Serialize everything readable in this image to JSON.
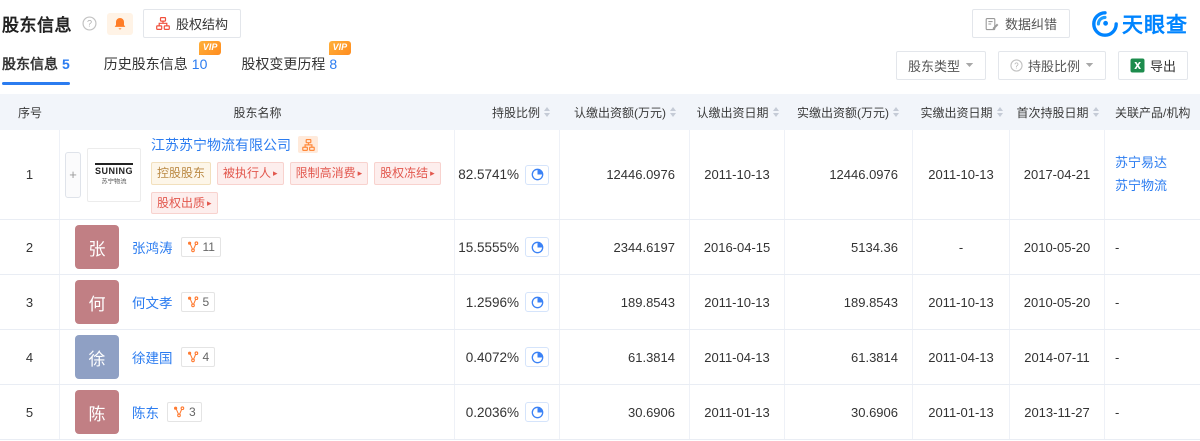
{
  "header": {
    "title": "股东信息",
    "equity_structure": "股权结构",
    "data_correction": "数据纠错",
    "brand": "天眼查"
  },
  "tabs": [
    {
      "label": "股东信息",
      "count": "5",
      "vip": ""
    },
    {
      "label": "历史股东信息",
      "count": "10",
      "vip": "VIP"
    },
    {
      "label": "股权变更历程",
      "count": "8",
      "vip": "VIP"
    }
  ],
  "filters": {
    "shareholder_type": "股东类型",
    "holding_ratio": "持股比例",
    "export": "导出"
  },
  "table": {
    "expander": "+",
    "columns": [
      {
        "label": "序号",
        "sortable": false
      },
      {
        "label": "股东名称",
        "sortable": false
      },
      {
        "label": "持股比例",
        "sortable": true
      },
      {
        "label": "认缴出资额(万元)",
        "sortable": true
      },
      {
        "label": "认缴出资日期",
        "sortable": true
      },
      {
        "label": "实缴出资额(万元)",
        "sortable": true
      },
      {
        "label": "实缴出资日期",
        "sortable": true
      },
      {
        "label": "首次持股日期",
        "sortable": true
      },
      {
        "label": "关联产品/机构",
        "sortable": false
      }
    ],
    "rows": [
      {
        "index": "1",
        "company": true,
        "logo": {
          "line1": "SUNING",
          "line2": "苏宁物流"
        },
        "name": "江苏苏宁物流有限公司",
        "tags": [
          {
            "label": "控股股东",
            "style": "gold",
            "arrow": false
          },
          {
            "label": "被执行人",
            "style": "red",
            "arrow": true
          },
          {
            "label": "限制高消费",
            "style": "red",
            "arrow": true
          },
          {
            "label": "股权冻结",
            "style": "red",
            "arrow": true
          },
          {
            "label": "股权出质",
            "style": "red",
            "arrow": true
          }
        ],
        "ratio": "82.5741%",
        "subscribed_amount": "12446.0976",
        "subscribed_date": "2011-10-13",
        "paid_amount": "12446.0976",
        "paid_date": "2011-10-13",
        "first_date": "2017-04-21",
        "related": [
          "苏宁易达",
          "苏宁物流"
        ]
      },
      {
        "index": "2",
        "company": false,
        "avatar": "张",
        "avatar_color": "#c17f84",
        "name": "张鸿涛",
        "graph_count": "11",
        "ratio": "15.5555%",
        "subscribed_amount": "2344.6197",
        "subscribed_date": "2016-04-15",
        "paid_amount": "5134.36",
        "paid_date": "-",
        "first_date": "2010-05-20",
        "related": [
          "-"
        ]
      },
      {
        "index": "3",
        "company": false,
        "avatar": "何",
        "avatar_color": "#c17f84",
        "name": "何文孝",
        "graph_count": "5",
        "ratio": "1.2596%",
        "subscribed_amount": "189.8543",
        "subscribed_date": "2011-10-13",
        "paid_amount": "189.8543",
        "paid_date": "2011-10-13",
        "first_date": "2010-05-20",
        "related": [
          "-"
        ]
      },
      {
        "index": "4",
        "company": false,
        "avatar": "徐",
        "avatar_color": "#8fa0c4",
        "name": "徐建国",
        "graph_count": "4",
        "ratio": "0.4072%",
        "subscribed_amount": "61.3814",
        "subscribed_date": "2011-04-13",
        "paid_amount": "61.3814",
        "paid_date": "2011-04-13",
        "first_date": "2014-07-11",
        "related": [
          "-"
        ]
      },
      {
        "index": "5",
        "company": false,
        "avatar": "陈",
        "avatar_color": "#c17f84",
        "name": "陈东",
        "graph_count": "3",
        "ratio": "0.2036%",
        "subscribed_amount": "30.6906",
        "subscribed_date": "2011-01-13",
        "paid_amount": "30.6906",
        "paid_date": "2011-01-13",
        "first_date": "2013-11-27",
        "related": [
          "-"
        ]
      }
    ]
  },
  "colors": {
    "accent_blue": "#2b7cf0",
    "brand_blue": "#0084ff",
    "vip_orange": "#ff8c1f",
    "tag_red_text": "#e2574d",
    "tag_gold_text": "#bb8a45",
    "avatar_rose": "#c17f84",
    "avatar_blue": "#8fa0c4"
  }
}
